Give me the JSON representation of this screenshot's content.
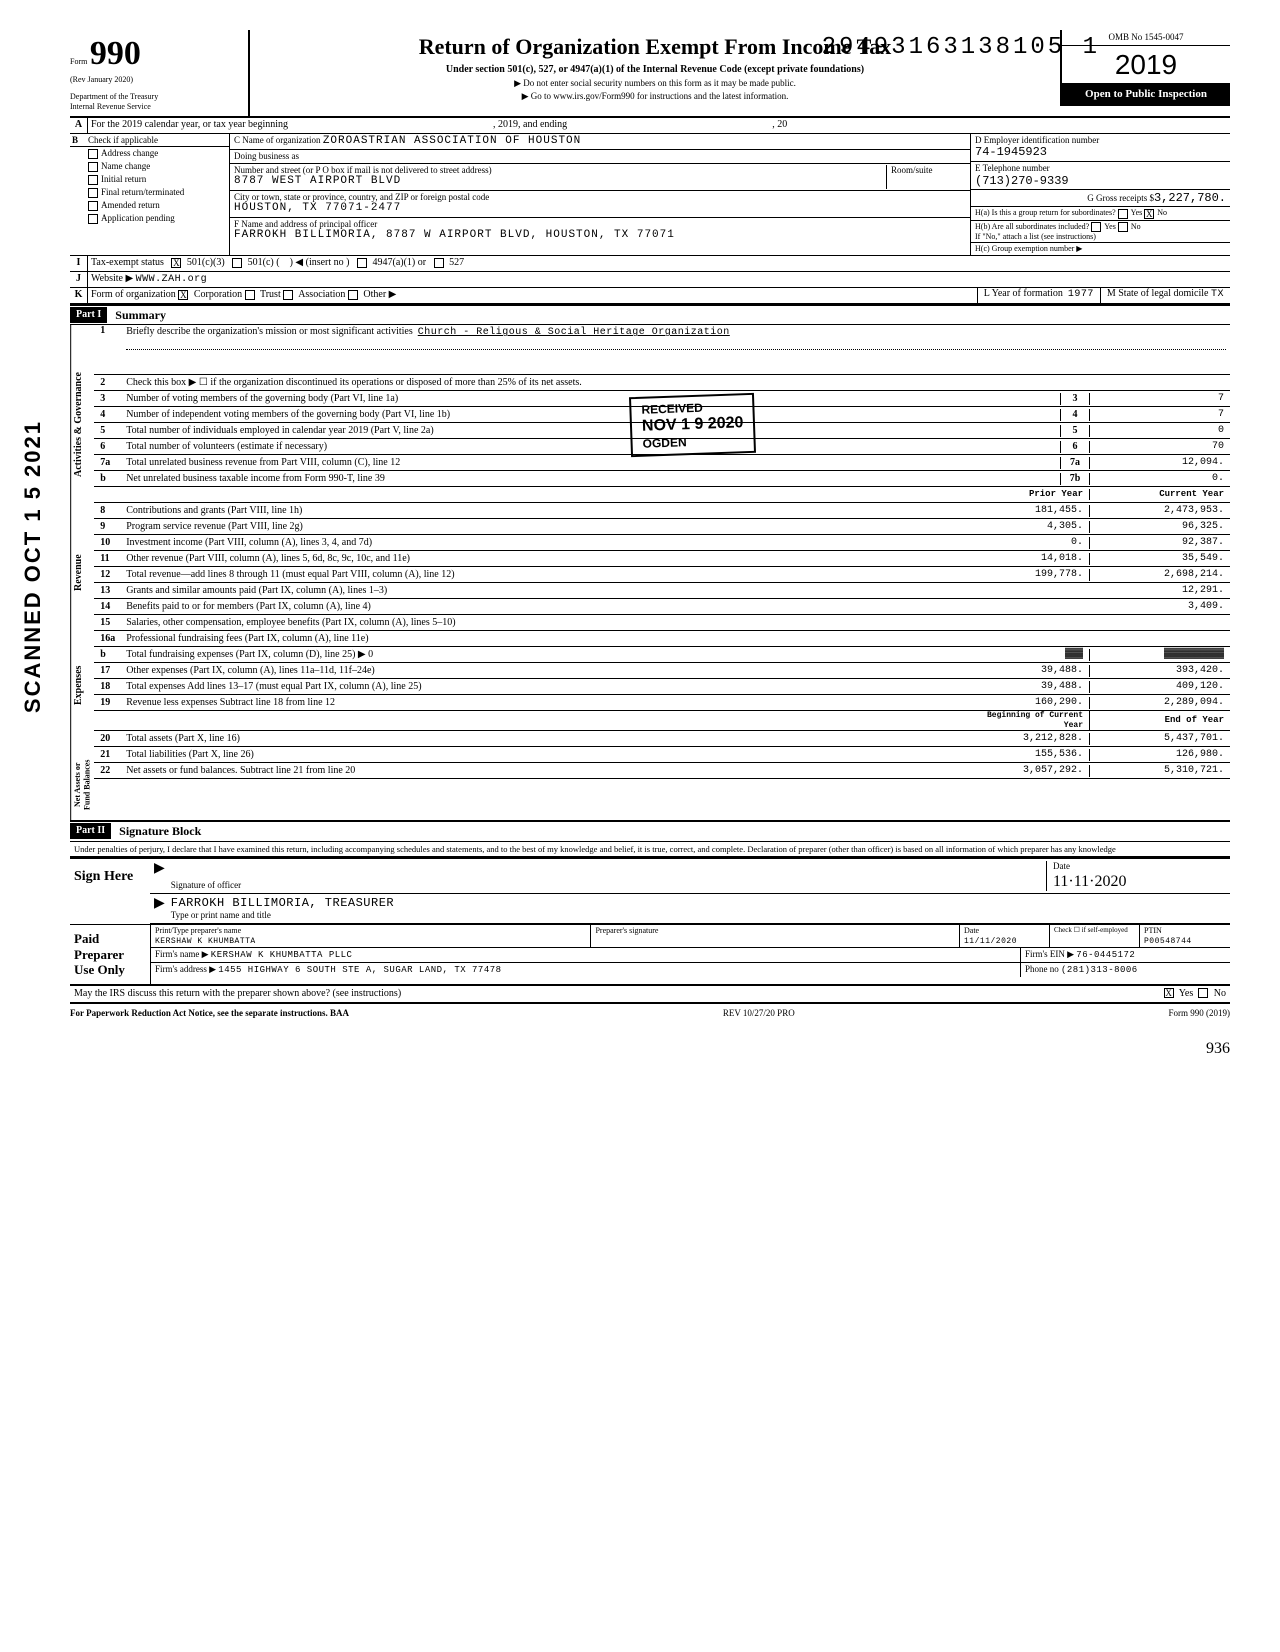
{
  "top_number": "29493163138105 1",
  "side_scan": "SCANNED OCT 1 5 2021",
  "form": {
    "no_label": "Form",
    "no": "990",
    "rev": "(Rev January 2020)",
    "dept": "Department of the Treasury",
    "irs": "Internal Revenue Service",
    "title": "Return of Organization Exempt From Income Tax",
    "subtitle": "Under section 501(c), 527, or 4947(a)(1) of the Internal Revenue Code (except private foundations)",
    "note1": "▶ Do not enter social security numbers on this form as it may be made public.",
    "note2": "▶ Go to www.irs.gov/Form990 for instructions and the latest information.",
    "omb": "OMB No 1545-0047",
    "year": "2019",
    "open": "Open to Public Inspection"
  },
  "rowA": {
    "label": "A",
    "text1": "For the 2019 calendar year, or tax year beginning",
    "text2": ", 2019, and ending",
    "text3": ", 20"
  },
  "B": {
    "label": "B",
    "heading": "Check if applicable",
    "items": [
      "Address change",
      "Name change",
      "Initial return",
      "Final return/terminated",
      "Amended return",
      "Application pending"
    ]
  },
  "C": {
    "name_label": "C Name of organization",
    "name": "ZOROASTRIAN ASSOCIATION OF HOUSTON",
    "dba_label": "Doing business as",
    "street_label": "Number and street (or P O box if mail is not delivered to street address)",
    "street": "8787 WEST AIRPORT BLVD",
    "room_label": "Room/suite",
    "city_label": "City or town, state or province, country, and ZIP or foreign postal code",
    "city": "HOUSTON, TX 77071-2477",
    "F_label": "F Name and address of principal officer",
    "F_value": "FARROKH BILLIMORIA, 8787 W  AIRPORT BLVD, HOUSTON, TX 77071"
  },
  "D": {
    "label": "D Employer identification number",
    "value": "74-1945923"
  },
  "E": {
    "label": "E Telephone number",
    "value": "(713)270-9339"
  },
  "G": {
    "label": "G Gross receipts $",
    "value": "3,227,780."
  },
  "H": {
    "a": "H(a) Is this a group return for subordinates?",
    "a_yes": "Yes",
    "a_no": "No",
    "b": "H(b) Are all subordinates included?",
    "b_yes": "Yes",
    "b_no": "No",
    "b_note": "If \"No,\" attach a list (see instructions)",
    "c": "H(c) Group exemption number ▶"
  },
  "I": {
    "label": "I",
    "text": "Tax-exempt status",
    "opt1": "501(c)(3)",
    "opt2": "501(c) (",
    "opt2b": ") ◀ (insert no )",
    "opt3": "4947(a)(1) or",
    "opt4": "527"
  },
  "J": {
    "label": "J",
    "text": "Website ▶",
    "value": "WWW.ZAH.org"
  },
  "K": {
    "label": "K",
    "text": "Form of organization",
    "opts": [
      "Corporation",
      "Trust",
      "Association",
      "Other ▶"
    ],
    "L": "L Year of formation",
    "Lval": "1977",
    "M": "M State of legal domicile",
    "Mval": "TX"
  },
  "part1": {
    "hdr": "Part I",
    "title": "Summary"
  },
  "summary": {
    "sections": {
      "gov": "Activities & Governance",
      "rev": "Revenue",
      "exp": "Expenses",
      "net": "Net Assets or Fund Balances"
    },
    "line1": {
      "num": "1",
      "desc": "Briefly describe the organization's mission or most significant activities",
      "val": "Church - Religous & Social Heritage Organization"
    },
    "line2": {
      "num": "2",
      "desc": "Check this box ▶ ☐ if the organization discontinued its operations or disposed of more than 25% of its net assets."
    },
    "lines_simple": [
      {
        "num": "3",
        "desc": "Number of voting members of the governing body (Part VI, line 1a)",
        "box": "3",
        "val": "7"
      },
      {
        "num": "4",
        "desc": "Number of independent voting members of the governing body (Part VI, line 1b)",
        "box": "4",
        "val": "7"
      },
      {
        "num": "5",
        "desc": "Total number of individuals employed in calendar year 2019 (Part V, line 2a)",
        "box": "5",
        "val": "0"
      },
      {
        "num": "6",
        "desc": "Total number of volunteers (estimate if necessary)",
        "box": "6",
        "val": "70"
      },
      {
        "num": "7a",
        "desc": "Total unrelated business revenue from Part VIII, column (C), line 12",
        "box": "7a",
        "val": "12,094."
      },
      {
        "num": "b",
        "desc": "Net unrelated business taxable income from Form 990-T, line 39",
        "box": "7b",
        "val": "0."
      }
    ],
    "col_prior": "Prior Year",
    "col_curr": "Current Year",
    "lines_two": [
      {
        "num": "8",
        "desc": "Contributions and grants (Part VIII, line 1h)",
        "prior": "181,455.",
        "curr": "2,473,953."
      },
      {
        "num": "9",
        "desc": "Program service revenue (Part VIII, line 2g)",
        "prior": "4,305.",
        "curr": "96,325."
      },
      {
        "num": "10",
        "desc": "Investment income (Part VIII, column (A), lines 3, 4, and 7d)",
        "prior": "0.",
        "curr": "92,387."
      },
      {
        "num": "11",
        "desc": "Other revenue (Part VIII, column (A), lines 5, 6d, 8c, 9c, 10c, and 11e)",
        "prior": "14,018.",
        "curr": "35,549."
      },
      {
        "num": "12",
        "desc": "Total revenue—add lines 8 through 11 (must equal Part VIII, column (A), line 12)",
        "prior": "199,778.",
        "curr": "2,698,214."
      },
      {
        "num": "13",
        "desc": "Grants and similar amounts paid (Part IX, column (A), lines 1–3)",
        "prior": "",
        "curr": "12,291."
      },
      {
        "num": "14",
        "desc": "Benefits paid to or for members (Part IX, column (A), line 4)",
        "prior": "",
        "curr": "3,409."
      },
      {
        "num": "15",
        "desc": "Salaries, other compensation, employee benefits (Part IX, column (A), lines 5–10)",
        "prior": "",
        "curr": ""
      },
      {
        "num": "16a",
        "desc": "Professional fundraising fees (Part IX, column (A), line 11e)",
        "prior": "",
        "curr": ""
      },
      {
        "num": "b",
        "desc": "Total fundraising expenses (Part IX, column (D), line 25) ▶     0",
        "prior": "▓▓▓",
        "curr": "▓▓▓▓▓▓▓▓▓▓"
      },
      {
        "num": "17",
        "desc": "Other expenses (Part IX, column (A), lines 11a–11d, 11f–24e)",
        "prior": "39,488.",
        "curr": "393,420."
      },
      {
        "num": "18",
        "desc": "Total expenses Add lines 13–17 (must equal Part IX, column (A), line 25)",
        "prior": "39,488.",
        "curr": "409,120."
      },
      {
        "num": "19",
        "desc": "Revenue less expenses Subtract line 18 from line 12",
        "prior": "160,290.",
        "curr": "2,289,094."
      }
    ],
    "col_begin": "Beginning of Current Year",
    "col_end": "End of Year",
    "lines_net": [
      {
        "num": "20",
        "desc": "Total assets (Part X, line 16)",
        "prior": "3,212,828.",
        "curr": "5,437,701."
      },
      {
        "num": "21",
        "desc": "Total liabilities (Part X, line 26)",
        "prior": "155,536.",
        "curr": "126,980."
      },
      {
        "num": "22",
        "desc": "Net assets or fund balances. Subtract line 21 from line 20",
        "prior": "3,057,292.",
        "curr": "5,310,721."
      }
    ]
  },
  "stamp": {
    "received": "RECEIVED",
    "date": "NOV 1 9 2020",
    "ogden": "OGDEN"
  },
  "part2": {
    "hdr": "Part II",
    "title": "Signature Block"
  },
  "perjury": "Under penalties of perjury, I declare that I have examined this return, including accompanying schedules and statements, and to the best of my knowledge and belief, it is true, correct, and complete. Declaration of preparer (other than officer) is based on all information of which preparer has any knowledge",
  "sign": {
    "here": "Sign Here",
    "sig_label": "Signature of officer",
    "date_label": "Date",
    "date_val": "11·11·2020",
    "name": "FARROKH BILLIMORIA, TREASURER",
    "name_label": "Type or print name and title"
  },
  "paid": {
    "label": "Paid Preparer Use Only",
    "prep_name_label": "Print/Type preparer's name",
    "prep_name": "KERSHAW K  KHUMBATTA",
    "prep_sig_label": "Preparer's signature",
    "date": "11/11/2020",
    "check_label": "Check ☐ if self-employed",
    "ptin_label": "PTIN",
    "ptin": "P00548744",
    "firm_name_label": "Firm's name ▶",
    "firm_name": "KERSHAW K KHUMBATTA PLLC",
    "firm_ein_label": "Firm's EIN ▶",
    "firm_ein": "76-0445172",
    "firm_addr_label": "Firm's address ▶",
    "firm_addr": "1455 HIGHWAY 6 SOUTH STE A, SUGAR LAND, TX 77478",
    "phone_label": "Phone no",
    "phone": "(281)313-8006"
  },
  "discuss": {
    "text": "May the IRS discuss this return with the preparer shown above? (see instructions)",
    "yes": "Yes",
    "no": "No"
  },
  "footer": {
    "left": "For Paperwork Reduction Act Notice, see the separate instructions. BAA",
    "mid": "REV 10/27/20 PRO",
    "right": "Form 990 (2019)"
  },
  "hand_bottom": "936"
}
